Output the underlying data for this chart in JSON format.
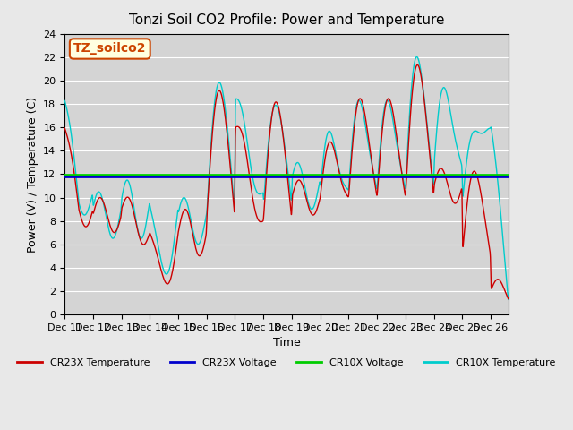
{
  "title": "Tonzi Soil CO2 Profile: Power and Temperature",
  "xlabel": "Time",
  "ylabel": "Power (V) / Temperature (C)",
  "watermark": "TZ_soilco2",
  "ylim": [
    0,
    24
  ],
  "xlim": [
    0,
    375
  ],
  "cr23x_voltage": 11.8,
  "cr10x_voltage": 11.95,
  "background_color": "#e8e8e8",
  "plot_bg_color": "#d8d8d8",
  "cr23x_temp_color": "#cc0000",
  "cr10x_temp_color": "#00cccc",
  "cr23x_volt_color": "#0000cc",
  "cr10x_volt_color": "#00cc00",
  "tick_labels": [
    "Dec 11",
    "Dec 12",
    "Dec 13",
    "Dec 14",
    "Dec 15",
    "Dec 16",
    "Dec 17",
    "Dec 18",
    "Dec 19",
    "Dec 20",
    "Dec 21",
    "Dec 22",
    "Dec 23",
    "Dec 24",
    "Dec 25",
    "Dec 26"
  ],
  "tick_positions": [
    0,
    24,
    48,
    72,
    96,
    120,
    144,
    168,
    192,
    216,
    240,
    264,
    288,
    312,
    336,
    360
  ]
}
